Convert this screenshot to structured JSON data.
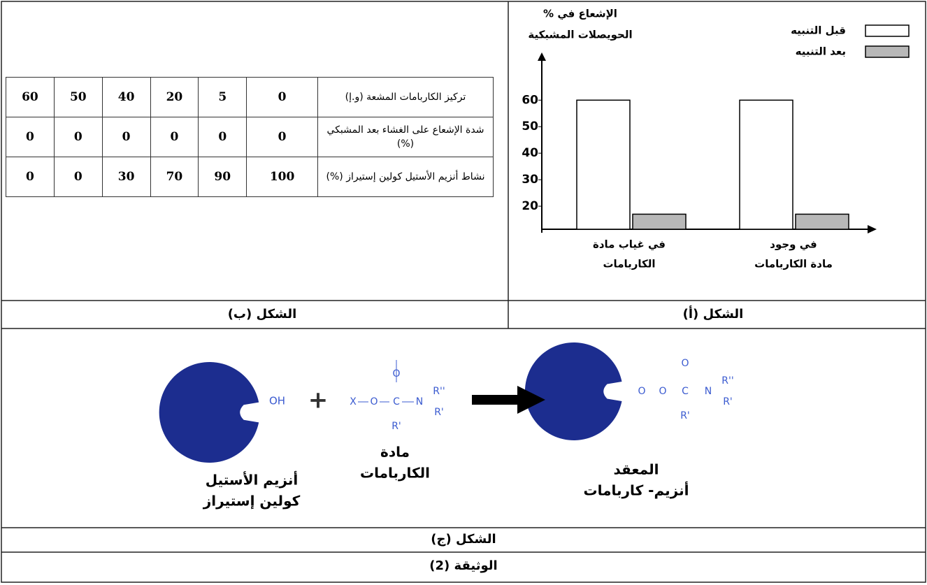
{
  "chart_data": {
    "type": "bar",
    "y_label": [
      "% الإشعاع في",
      "الحويصلات المشبكية"
    ],
    "categories": [
      [
        "في غياب مادة",
        "الكاربامات"
      ],
      [
        "في وجود",
        "مادة الكاربامات"
      ]
    ],
    "series": [
      {
        "name": "قبل التنبيه",
        "color": "#ffffff",
        "values": [
          60,
          60
        ]
      },
      {
        "name": "بعد التنبيه",
        "color": "#b8b8b8",
        "values": [
          17,
          17
        ]
      }
    ],
    "ylim": [
      10,
      78
    ],
    "yticks": [
      20,
      30,
      40,
      50,
      60
    ]
  },
  "table": {
    "rows": [
      {
        "label": "تركيز الكاربامات المشعة (و.إ)",
        "values": [
          0,
          5,
          20,
          40,
          50,
          60
        ]
      },
      {
        "label": "شدة الإشعاع على الغشاء بعد المشبكي (%)",
        "values": [
          0,
          0,
          0,
          0,
          0,
          0
        ]
      },
      {
        "label": "نشاط أنزيم الأستيل كولين إستيراز (%)",
        "values": [
          100,
          90,
          70,
          30,
          0,
          0
        ]
      }
    ]
  },
  "figures": {
    "a": "الشكل (أ)",
    "b": "الشكل (ب)",
    "c": "الشكل (ج)"
  },
  "diagram": {
    "enzyme": [
      "أنزيم الأستيل",
      "كولين إستيراز"
    ],
    "enzyme_group": "OH",
    "plus": "+",
    "substrate": [
      "مادة",
      "الكاربامات"
    ],
    "substrate_atoms": [
      "X",
      "O",
      "C",
      "N",
      "O",
      "R'",
      "R''",
      "R'"
    ],
    "complex": [
      "المعقد",
      "أنزيم- كاربامات"
    ],
    "complex_atoms": [
      "O",
      "O",
      "C",
      "N",
      "O",
      "R'",
      "R''",
      "R'"
    ]
  },
  "document_title": "الوثيقة (2)"
}
